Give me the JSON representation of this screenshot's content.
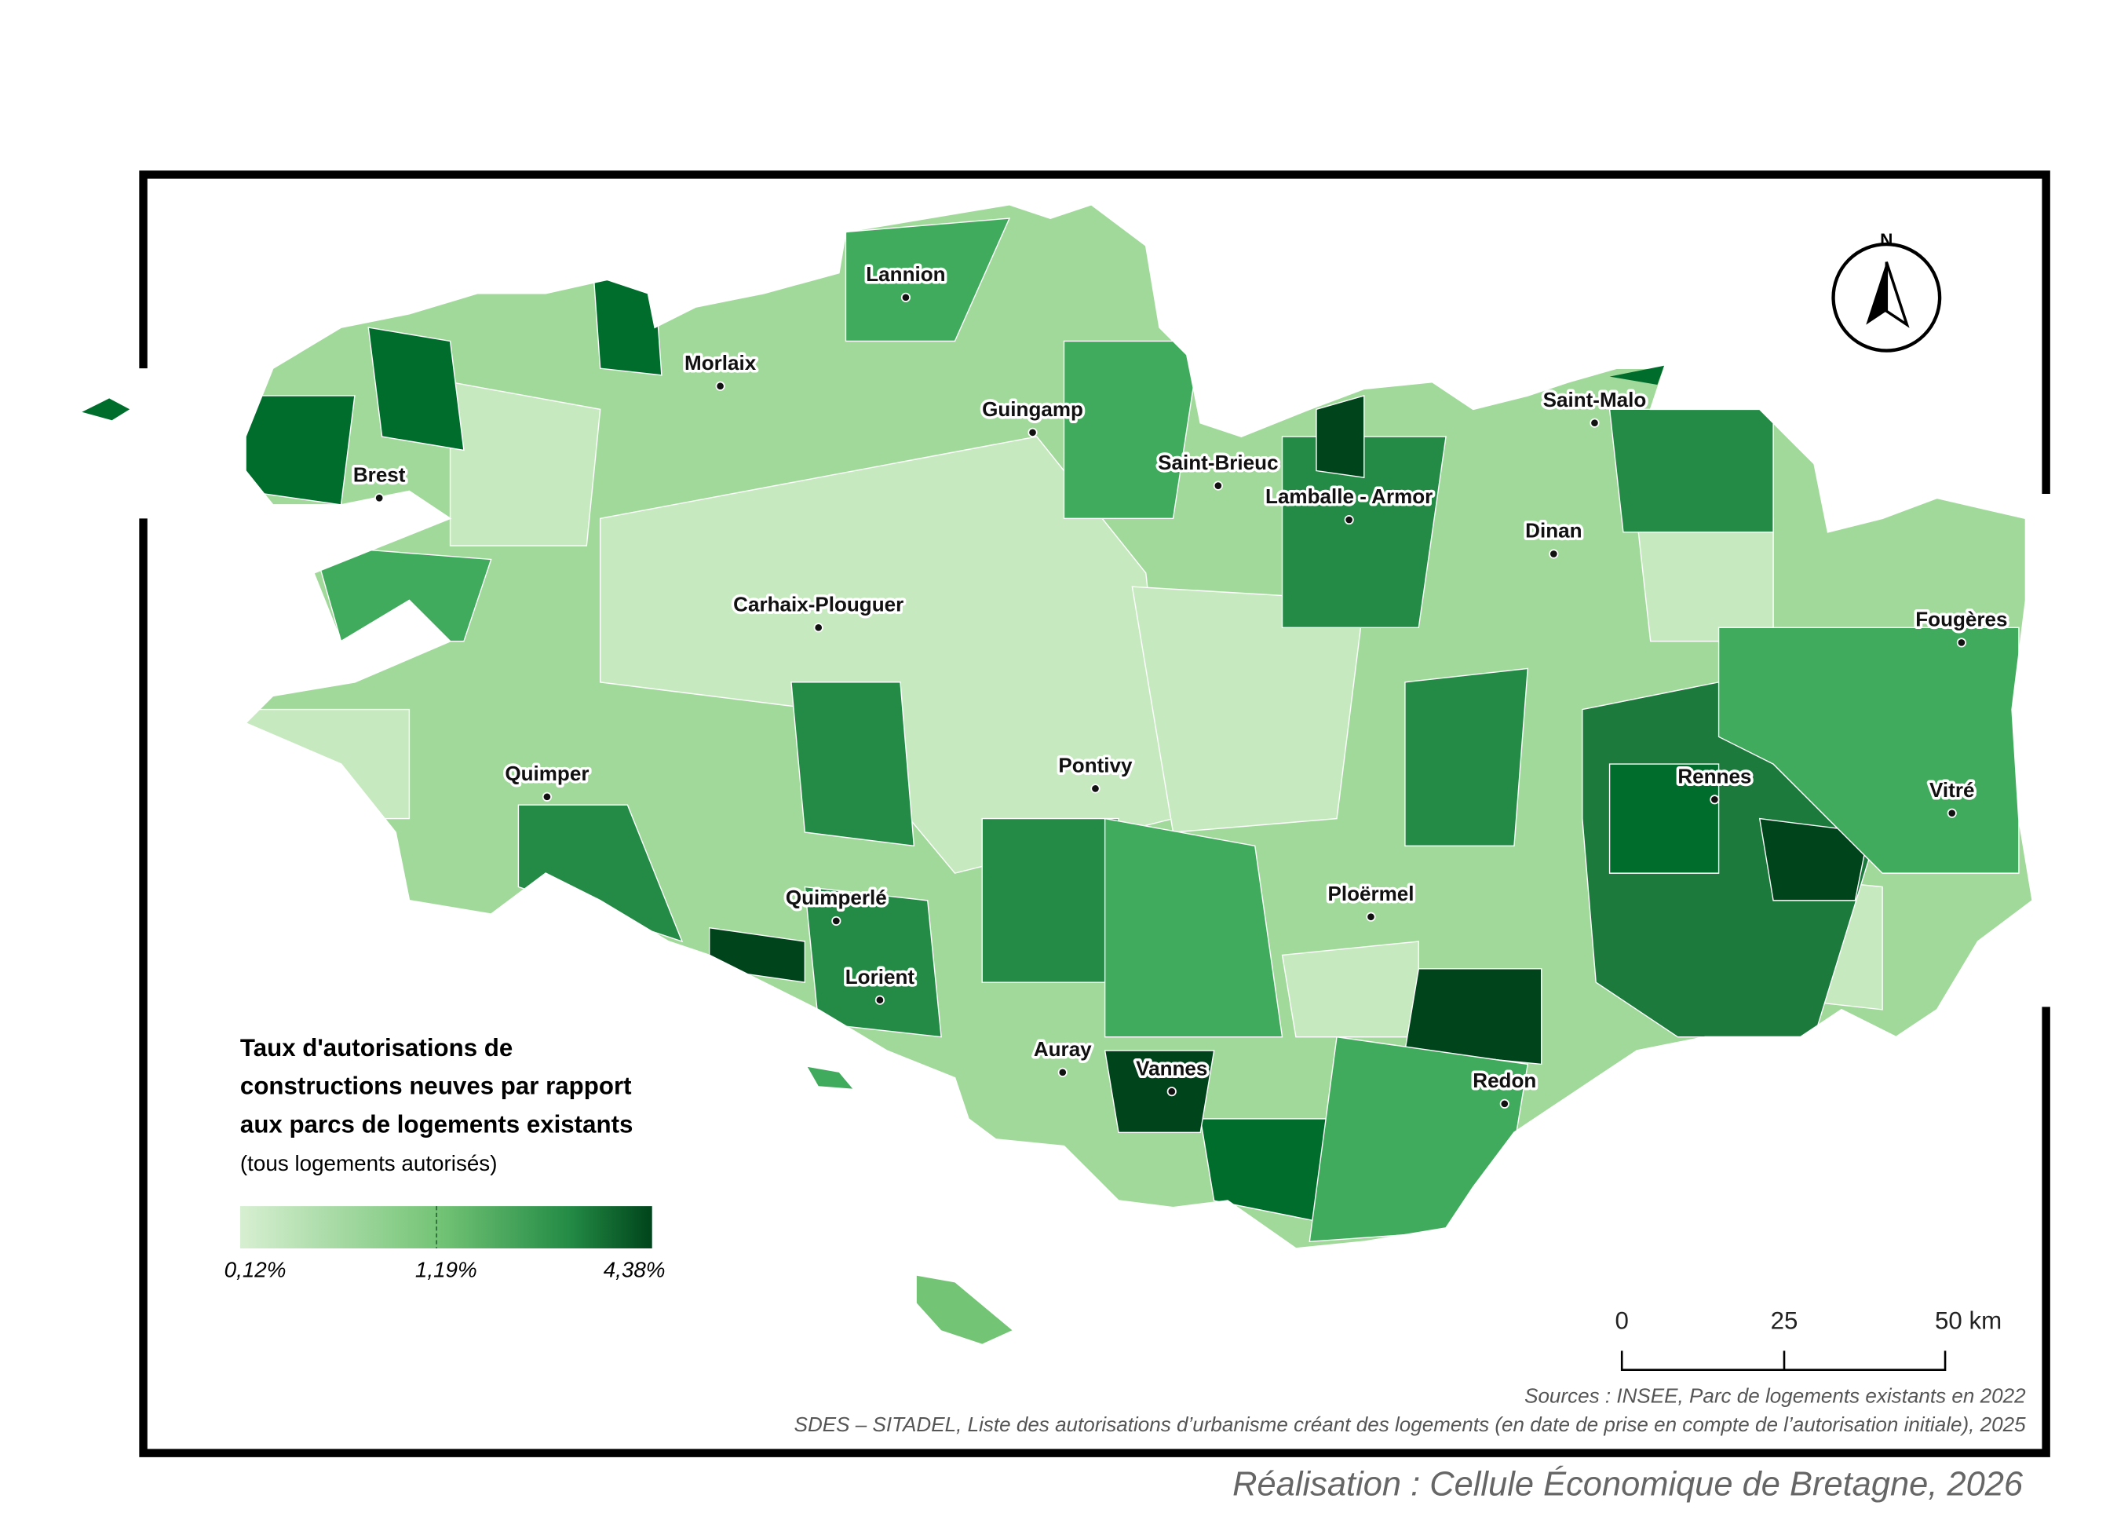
{
  "title": [
    "Taux d'autorisations de",
    "constructions neuves par rapport",
    "aux parcs de logements existants"
  ],
  "subtitle": "(tous logements autorisés)",
  "legend": {
    "labels": [
      "0,12%",
      "1,19%",
      "4,38%"
    ]
  },
  "north": "N",
  "scale_bar": {
    "labels": [
      "0",
      "25",
      "50 km"
    ]
  },
  "cities": [
    "Lannion",
    "Morlaix",
    "Guingamp",
    "Brest",
    "Saint-Brieuc",
    "Lamballe - Armor",
    "Saint-Malo",
    "Dinan",
    "Carhaix-Plouguer",
    "Fougères",
    "Quimper",
    "Pontivy",
    "Rennes",
    "Vitré",
    "Ploërmel",
    "Quimperlé",
    "Lorient",
    "Auray",
    "Vannes",
    "Redon"
  ],
  "sources": [
    "Sources : INSEE, Parc de logements existants en 2022",
    "SDES – SITADEL, Liste des autorisations d’urbanisme créant des logements (en date de prise en compte de l’autorisation initiale), 2025"
  ],
  "credit": "Réalisation : Cellule Économique de Bretagne, 2026"
}
